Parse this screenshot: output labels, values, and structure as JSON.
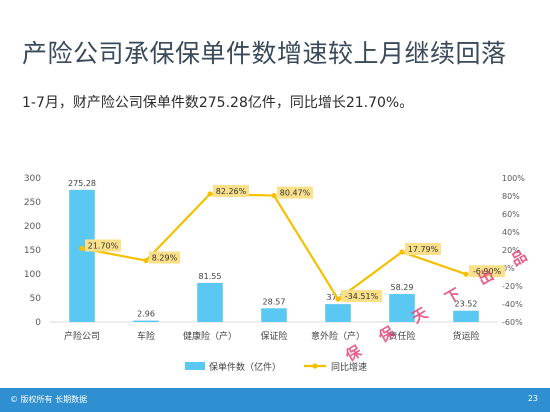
{
  "page": {
    "title": "产险公司承保保单件数增速较上月继续回落",
    "subtitle": "1-7月，财产险公司保单件数275.28亿件，同比增长21.70%。",
    "footer_left": "© 版权所有 长期数据",
    "page_number": "23",
    "watermark": "保 保 天 下 出 品"
  },
  "chart_data": {
    "type": "bar",
    "categories": [
      "产险公司",
      "车险",
      "健康险（产）",
      "保证险",
      "意外险（产）",
      "责任险",
      "货运险"
    ],
    "series": [
      {
        "name": "保单件数（亿件）",
        "type": "bar",
        "axis": "left",
        "values": [
          275.28,
          2.96,
          81.55,
          28.57,
          37.35,
          58.29,
          23.52
        ],
        "labels": [
          "275.28",
          "2.96",
          "81.55",
          "28.57",
          "37.35",
          "58.29",
          "23.52"
        ],
        "color": "#5bc8f2"
      },
      {
        "name": "同比增速",
        "type": "line",
        "axis": "right",
        "values": [
          21.7,
          8.29,
          82.26,
          80.47,
          -34.51,
          17.79,
          -6.9
        ],
        "labels": [
          "21.70%",
          "8.29%",
          "82.26%",
          "80.47%",
          "-34.51%",
          "17.79%",
          "-6.90%"
        ],
        "color": "#f5c000",
        "label_bg": "#fbe08a"
      }
    ],
    "y_left": {
      "min": 0,
      "max": 300,
      "ticks": [
        "0",
        "50",
        "100",
        "150",
        "200",
        "250",
        "300"
      ],
      "tick_values": [
        0,
        50,
        100,
        150,
        200,
        250,
        300
      ]
    },
    "y_right": {
      "min": -60,
      "max": 100,
      "ticks": [
        "-60%",
        "-40%",
        "-20%",
        "0%",
        "20%",
        "40%",
        "60%",
        "80%",
        "100%"
      ],
      "tick_values": [
        -60,
        -40,
        -20,
        0,
        20,
        40,
        60,
        80,
        100
      ]
    },
    "legend": {
      "position": "bottom",
      "items": [
        "保单件数（亿件）",
        "同比增速"
      ]
    },
    "grid": false
  }
}
